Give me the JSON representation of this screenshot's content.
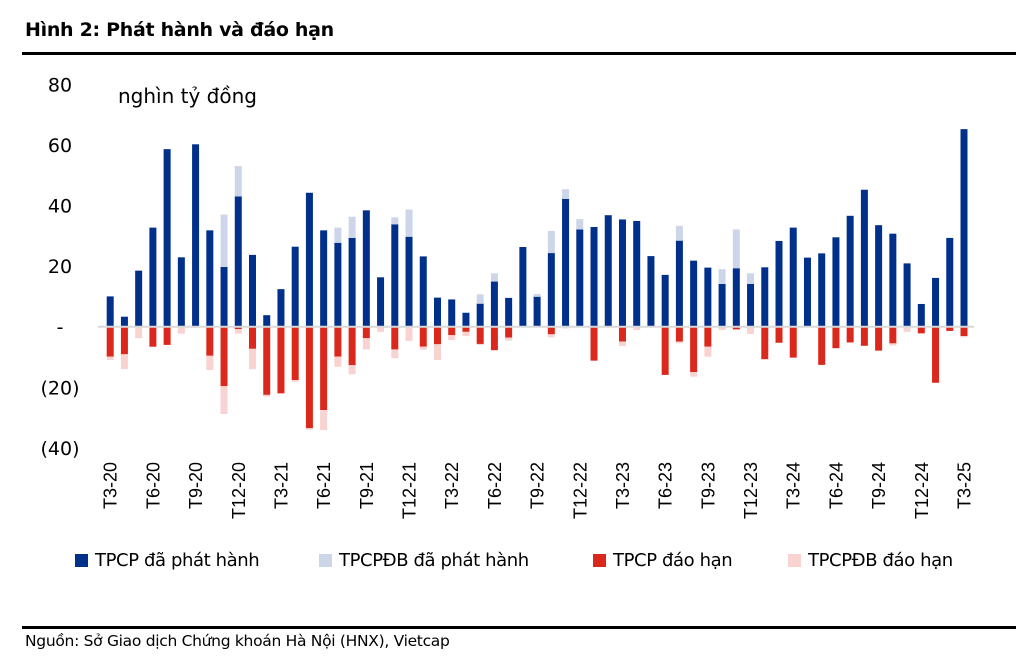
{
  "figure": {
    "title": "Hình 2: Phát hành và đáo hạn",
    "source": "Nguồn: Sở Giao dịch Chứng khoán Hà Nội (HNX), Vietcap"
  },
  "colors": {
    "tpcp_issued": "#00308A",
    "tpcpdb_issued": "#CDD6E8",
    "tpcp_maturity": "#DA291C",
    "tpcpdb_maturity": "#F9D2D2",
    "zero_line": "#D9D9D9"
  },
  "chart_data": {
    "type": "bar",
    "stacked": true,
    "title": "Hình 2: Phát hành và đáo hạn",
    "unit_label": "nghìn tỷ đồng",
    "xlabel": "",
    "ylabel": "nghìn tỷ đồng",
    "ylim": [
      -40,
      80
    ],
    "yticks": [
      80,
      60,
      40,
      20,
      0,
      -20,
      -40
    ],
    "ytick_labels": [
      "80",
      "60",
      "40",
      "20",
      "-",
      "(20)",
      "(40)"
    ],
    "grid": false,
    "legend_position": "bottom",
    "x_tick_labels": [
      "T3-20",
      "T6-20",
      "T9-20",
      "T12-20",
      "T3-21",
      "T6-21",
      "T9-21",
      "T12-21",
      "T3-22",
      "T6-22",
      "T9-22",
      "T12-22",
      "T3-23",
      "T6-23",
      "T9-23",
      "T12-23",
      "T3-24",
      "T6-24",
      "T9-24",
      "T12-24",
      "T3-25"
    ],
    "categories": [
      "T3-20",
      "T4-20",
      "T5-20",
      "T6-20",
      "T7-20",
      "T8-20",
      "T9-20",
      "T10-20",
      "T11-20",
      "T12-20",
      "T1-21",
      "T2-21",
      "T3-21",
      "T4-21",
      "T5-21",
      "T6-21",
      "T7-21",
      "T8-21",
      "T9-21",
      "T10-21",
      "T11-21",
      "T12-21",
      "T1-22",
      "T2-22",
      "T3-22",
      "T4-22",
      "T5-22",
      "T6-22",
      "T7-22",
      "T8-22",
      "T9-22",
      "T10-22",
      "T11-22",
      "T12-22",
      "T1-23",
      "T2-23",
      "T3-23",
      "T4-23",
      "T5-23",
      "T6-23",
      "T7-23",
      "T8-23",
      "T9-23",
      "T10-23",
      "T11-23",
      "T12-23",
      "T1-24",
      "T2-24",
      "T3-24",
      "T4-24",
      "T5-24",
      "T6-24",
      "T7-24",
      "T8-24",
      "T9-24",
      "T10-24",
      "T11-24",
      "T12-24",
      "T1-25",
      "T2-25",
      "T3-25"
    ],
    "series": [
      {
        "name": "TPCP đã phát hành",
        "key": "tpcp_issued",
        "values": [
          10,
          3.3,
          18.5,
          32.7,
          58.6,
          22.9,
          60.2,
          31.8,
          19.7,
          43,
          23.7,
          3.8,
          12.4,
          26.4,
          44.2,
          31.8,
          27.7,
          29.3,
          38.4,
          16.3,
          33.8,
          29.7,
          23.2,
          9.6,
          9,
          4.6,
          7.6,
          14.9,
          9.5,
          26.3,
          9.9,
          24.3,
          42.2,
          32.1,
          32.9,
          36.8,
          35.4,
          34.9,
          23.3,
          17.1,
          28.4,
          21.8,
          19.5,
          14.1,
          19.3,
          14.1,
          19.6,
          28.3,
          32.7,
          22.8,
          24.2,
          29.5,
          36.6,
          45.2,
          33.5,
          30.7,
          20.9,
          7.5,
          16.1,
          29.3,
          65.2
        ]
      },
      {
        "name": "TPCPĐB đã phát hành",
        "key": "tpcpdb_issued",
        "values": [
          0,
          0,
          0,
          0,
          0,
          0,
          0,
          0,
          17.3,
          10,
          0,
          0,
          0,
          0,
          0,
          0,
          5,
          7,
          0,
          0,
          2.3,
          9,
          0,
          0,
          0,
          0,
          3.1,
          2.7,
          0,
          0,
          0.9,
          7.3,
          3.2,
          3.4,
          0,
          0,
          0,
          0,
          0,
          0,
          4.9,
          0,
          0,
          4.9,
          12.8,
          3.5,
          0,
          0,
          0,
          0,
          0,
          0,
          0,
          0,
          0,
          0,
          0,
          0,
          0,
          0,
          0
        ]
      },
      {
        "name": "TPCP đáo hạn",
        "key": "tpcp_maturity",
        "values": [
          -9.9,
          -9.1,
          0,
          -6.6,
          -6,
          0,
          0,
          -9.6,
          -19.6,
          -0.8,
          -7.3,
          -22.5,
          -22,
          -17.6,
          -33.5,
          -27.5,
          -9.9,
          -12.7,
          -3.8,
          0,
          -7.5,
          0,
          -6.6,
          -5.8,
          -2.8,
          -1.7,
          -5.7,
          -7.7,
          -3.6,
          0,
          0,
          -2.5,
          0,
          0,
          -11.2,
          0,
          -4.9,
          0,
          0,
          -15.9,
          -4.9,
          -15,
          -6.6,
          0,
          -0.9,
          0,
          -10.7,
          -5.3,
          -10.2,
          0,
          -12.6,
          -7.1,
          -5.2,
          -6.3,
          -7.9,
          -5.5,
          0,
          -2.2,
          -18.5,
          -1.4,
          -3.1
        ]
      },
      {
        "name": "TPCPĐB đáo hạn",
        "key": "tpcpdb_maturity",
        "values": [
          -1.1,
          -4.9,
          -3.8,
          0,
          0,
          -2.3,
          -0.4,
          -4.7,
          -9.2,
          -1.5,
          -6.7,
          -0.6,
          0,
          -0.6,
          -0.5,
          -6.6,
          -3.3,
          -3,
          -3.7,
          -1.7,
          -2.9,
          -4.7,
          -1,
          -5.2,
          -1.6,
          -1.4,
          -0.3,
          -0.3,
          -1,
          0,
          0,
          -1,
          -0.6,
          0,
          0,
          0,
          -1.5,
          -1.1,
          0,
          0,
          -0.6,
          -1.5,
          -3.3,
          -1.1,
          0,
          -2.4,
          -0.3,
          0,
          0,
          0,
          0,
          0,
          0,
          0,
          0,
          -0.7,
          -1.7,
          0,
          0,
          0,
          -0.4
        ]
      }
    ]
  }
}
